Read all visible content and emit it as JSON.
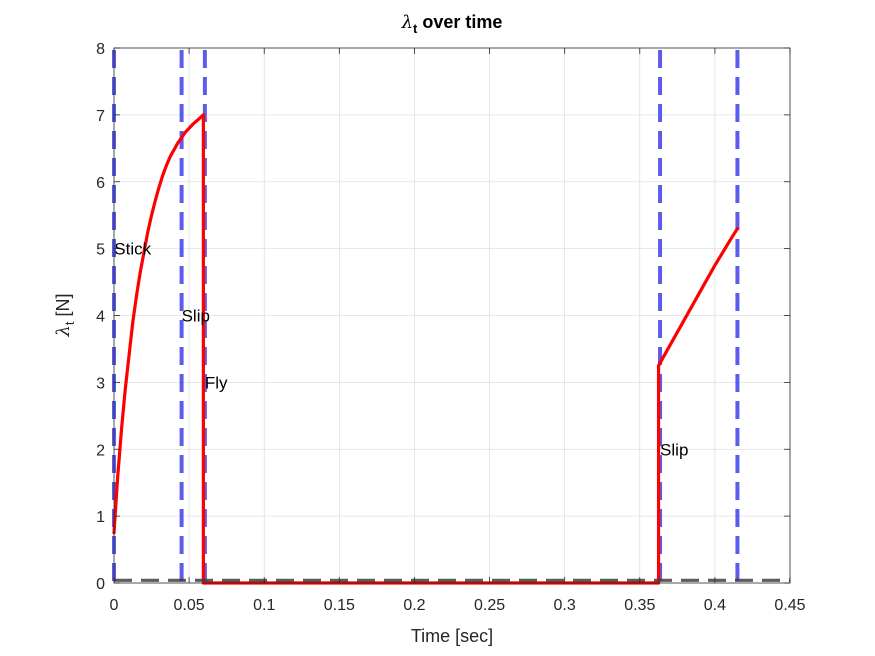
{
  "chart_data": {
    "type": "line",
    "title_symbol": "λ",
    "title_subscript": "t",
    "title_rest": " over time",
    "ylabel_symbol": "λ",
    "ylabel_subscript": "t",
    "ylabel_rest": " [N]",
    "xlabel": "Time [sec]",
    "xlim": [
      0,
      0.45
    ],
    "ylim": [
      0,
      8
    ],
    "xticks": [
      0,
      0.05,
      0.1,
      0.15,
      0.2,
      0.25,
      0.3,
      0.35,
      0.4,
      0.45
    ],
    "xtick_labels": [
      "0",
      "0.05",
      "0.1",
      "0.15",
      "0.2",
      "0.25",
      "0.3",
      "0.35",
      "0.4",
      "0.45"
    ],
    "yticks": [
      0,
      1,
      2,
      3,
      4,
      5,
      6,
      7,
      8
    ],
    "ytick_labels": [
      "0",
      "1",
      "2",
      "3",
      "4",
      "5",
      "6",
      "7",
      "8"
    ],
    "grid": true,
    "series": [
      {
        "color": "#ff0000",
        "style": "solid",
        "x": [
          0,
          0.0025,
          0.005,
          0.0075,
          0.01,
          0.0125,
          0.015,
          0.0175,
          0.02,
          0.0225,
          0.025,
          0.0275,
          0.03,
          0.0325,
          0.035,
          0.0375,
          0.04,
          0.0425,
          0.045,
          0.0475,
          0.05,
          0.0525,
          0.055,
          0.0575,
          0.0595,
          0.0595,
          0.0595,
          0.3625,
          0.3625,
          0.3625,
          0.37,
          0.38,
          0.39,
          0.4,
          0.41,
          0.415
        ],
        "y": [
          0.75,
          1.6,
          2.3,
          2.9,
          3.4,
          3.9,
          4.3,
          4.65,
          4.95,
          5.25,
          5.5,
          5.72,
          5.92,
          6.1,
          6.25,
          6.38,
          6.48,
          6.58,
          6.66,
          6.74,
          6.8,
          6.86,
          6.91,
          6.96,
          7.0,
          3.0,
          0.0,
          0.0,
          0.0,
          3.25,
          3.55,
          3.95,
          4.35,
          4.75,
          5.12,
          5.3
        ]
      }
    ],
    "phase_lines": {
      "color": "#4a4aeb",
      "style": "dashed",
      "x": [
        0,
        0.045,
        0.0605,
        0.3635,
        0.415
      ]
    },
    "zero_line": {
      "color": "#404040",
      "style": "dashed",
      "y": 0.04
    },
    "annotations": [
      {
        "text": "Stick",
        "x": 0.0002,
        "y": 5.0
      },
      {
        "text": "Slip",
        "x": 0.045,
        "y": 4.0
      },
      {
        "text": "Fly",
        "x": 0.0605,
        "y": 3.0
      },
      {
        "text": "Slip",
        "x": 0.3635,
        "y": 2.0
      }
    ]
  }
}
